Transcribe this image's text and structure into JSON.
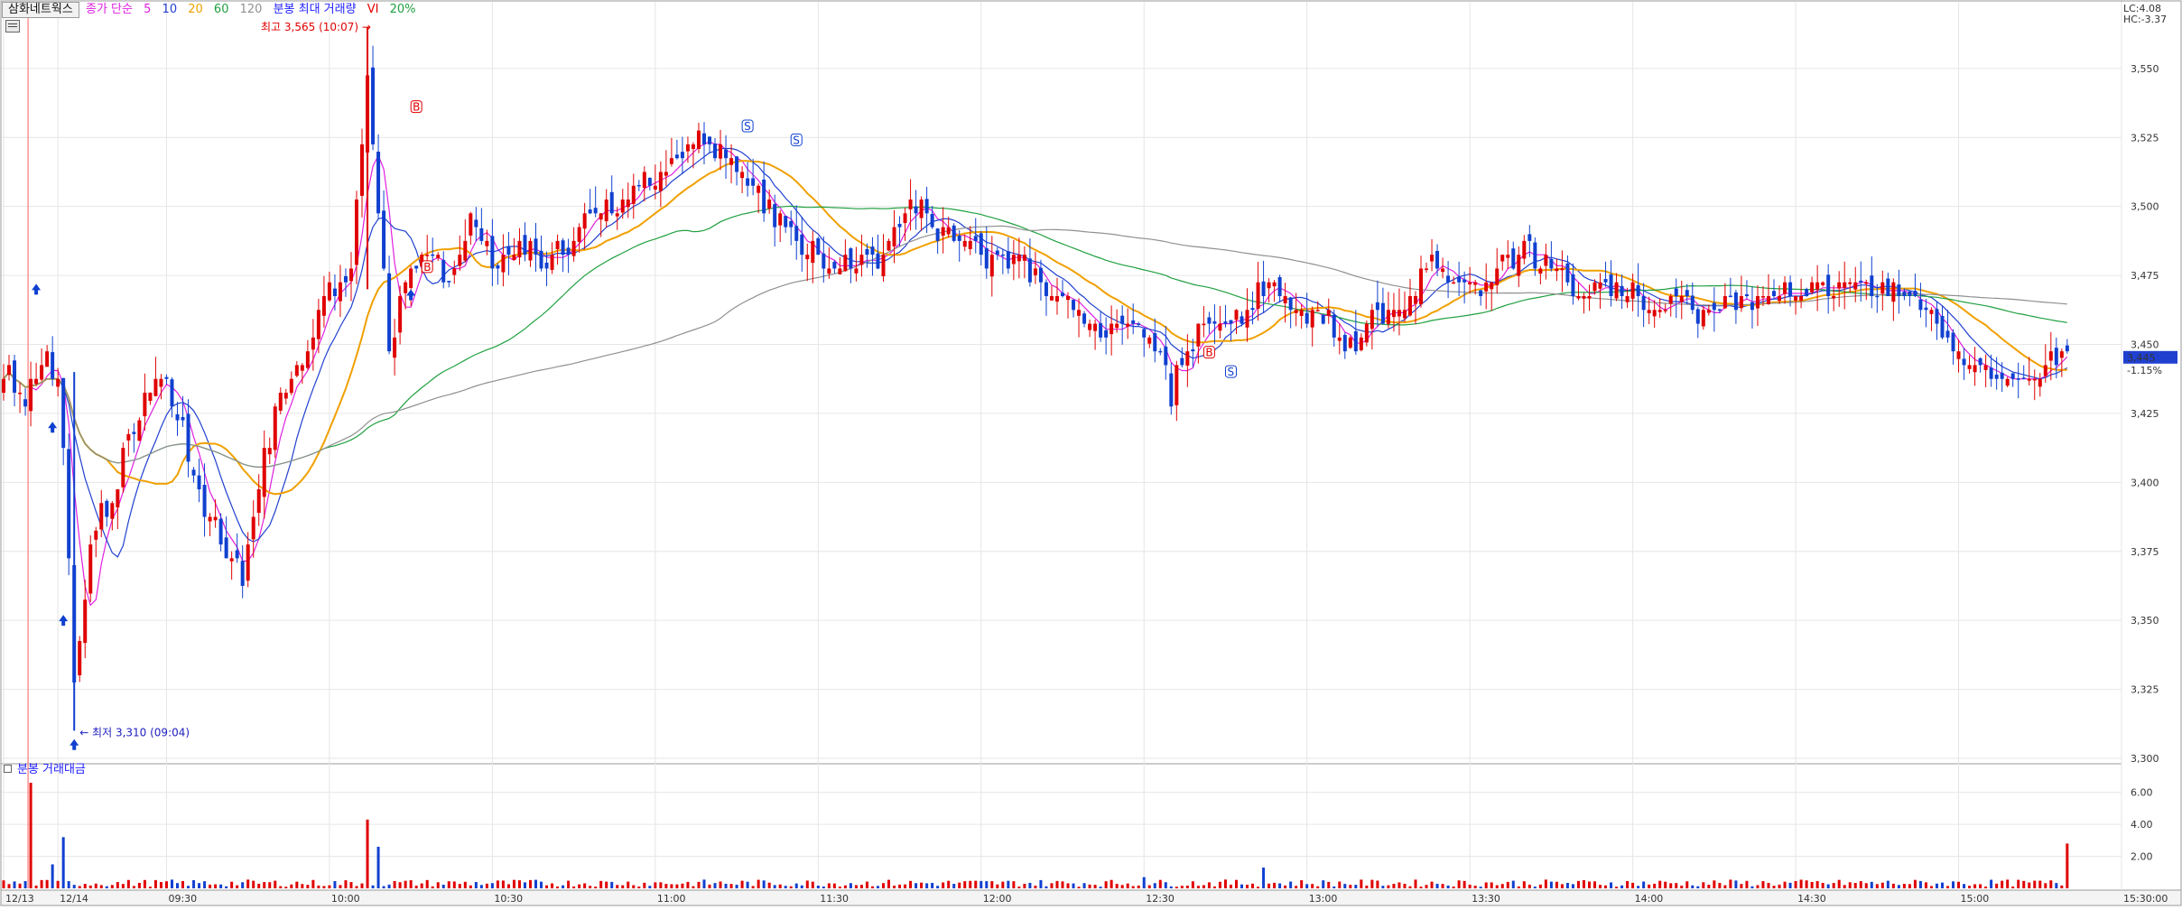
{
  "window": {
    "symbol": "삼화네트웍스",
    "legend": {
      "ma_label": "종가 단순",
      "ma_periods": [
        "5",
        "10",
        "20",
        "60",
        "120"
      ],
      "ma_colors": [
        "#e020e0",
        "#2040d0",
        "#f0a000",
        "#20a040",
        "#909090"
      ],
      "extra": [
        {
          "text": "분봉 최대 거래량",
          "color": "#2020ff"
        },
        {
          "text": "VI",
          "color": "#e00000"
        },
        {
          "text": "20%",
          "color": "#20a040"
        }
      ]
    },
    "top_right": {
      "lc": "LC:4.08",
      "hc": "HC:-3.37"
    },
    "last_price": {
      "value": "3,445",
      "change": "-1.15%"
    },
    "volume_panel_title": "분봉 거래대금"
  },
  "chart_data": {
    "type": "candlestick",
    "price_axis": {
      "min": 3300,
      "max": 3565,
      "ticks": [
        "3,300",
        "3,325",
        "3,350",
        "3,375",
        "3,400",
        "3,425",
        "3,450",
        "3,475",
        "3,500",
        "3,525",
        "3,550"
      ]
    },
    "volume_axis": {
      "min": 0,
      "max": 7,
      "ticks": [
        "2.00",
        "4.00",
        "6.00"
      ]
    },
    "time_labels": [
      {
        "t": 0,
        "label": "12/13"
      },
      {
        "t": 10,
        "label": "12/14"
      },
      {
        "t": 30,
        "label": "09:30"
      },
      {
        "t": 60,
        "label": "10:00"
      },
      {
        "t": 90,
        "label": "10:30"
      },
      {
        "t": 120,
        "label": "11:00"
      },
      {
        "t": 150,
        "label": "11:30"
      },
      {
        "t": 180,
        "label": "12:00"
      },
      {
        "t": 210,
        "label": "12:30"
      },
      {
        "t": 240,
        "label": "13:00"
      },
      {
        "t": 270,
        "label": "13:30"
      },
      {
        "t": 300,
        "label": "14:00"
      },
      {
        "t": 330,
        "label": "14:30"
      },
      {
        "t": 360,
        "label": "15:00"
      },
      {
        "t": 390,
        "label": "15:30:00"
      }
    ],
    "annotations": {
      "high": {
        "text": "최고 3,565 (10:07)",
        "t": 67,
        "price": 3565
      },
      "low": {
        "text": "최저 3,310 (09:04)",
        "t": 13,
        "price": 3310
      }
    },
    "anchors": [
      [
        0,
        3440
      ],
      [
        4,
        3430
      ],
      [
        8,
        3445
      ],
      [
        10,
        3438
      ],
      [
        11,
        3410
      ],
      [
        13,
        3330
      ],
      [
        15,
        3360
      ],
      [
        17,
        3385
      ],
      [
        20,
        3395
      ],
      [
        24,
        3420
      ],
      [
        28,
        3440
      ],
      [
        32,
        3425
      ],
      [
        36,
        3395
      ],
      [
        40,
        3380
      ],
      [
        44,
        3365
      ],
      [
        48,
        3410
      ],
      [
        52,
        3435
      ],
      [
        56,
        3450
      ],
      [
        60,
        3470
      ],
      [
        64,
        3478
      ],
      [
        67,
        3550
      ],
      [
        69,
        3500
      ],
      [
        71,
        3450
      ],
      [
        74,
        3470
      ],
      [
        78,
        3480
      ],
      [
        82,
        3475
      ],
      [
        86,
        3495
      ],
      [
        90,
        3480
      ],
      [
        95,
        3485
      ],
      [
        100,
        3480
      ],
      [
        104,
        3485
      ],
      [
        108,
        3495
      ],
      [
        112,
        3500
      ],
      [
        116,
        3505
      ],
      [
        120,
        3510
      ],
      [
        124,
        3520
      ],
      [
        128,
        3525
      ],
      [
        132,
        3520
      ],
      [
        136,
        3515
      ],
      [
        140,
        3500
      ],
      [
        144,
        3490
      ],
      [
        148,
        3485
      ],
      [
        152,
        3480
      ],
      [
        156,
        3482
      ],
      [
        160,
        3478
      ],
      [
        164,
        3490
      ],
      [
        168,
        3500
      ],
      [
        172,
        3490
      ],
      [
        176,
        3485
      ],
      [
        180,
        3483
      ],
      [
        184,
        3480
      ],
      [
        188,
        3478
      ],
      [
        192,
        3470
      ],
      [
        196,
        3465
      ],
      [
        200,
        3458
      ],
      [
        204,
        3455
      ],
      [
        208,
        3460
      ],
      [
        211,
        3450
      ],
      [
        213,
        3445
      ],
      [
        215,
        3430
      ],
      [
        217,
        3445
      ],
      [
        220,
        3455
      ],
      [
        224,
        3460
      ],
      [
        228,
        3462
      ],
      [
        232,
        3470
      ],
      [
        236,
        3468
      ],
      [
        240,
        3462
      ],
      [
        244,
        3460
      ],
      [
        248,
        3448
      ],
      [
        252,
        3458
      ],
      [
        256,
        3460
      ],
      [
        260,
        3472
      ],
      [
        264,
        3480
      ],
      [
        268,
        3472
      ],
      [
        272,
        3468
      ],
      [
        276,
        3478
      ],
      [
        280,
        3485
      ],
      [
        284,
        3478
      ],
      [
        288,
        3472
      ],
      [
        292,
        3468
      ],
      [
        296,
        3470
      ],
      [
        300,
        3468
      ],
      [
        304,
        3466
      ],
      [
        308,
        3464
      ],
      [
        312,
        3462
      ],
      [
        316,
        3465
      ],
      [
        320,
        3466
      ],
      [
        324,
        3468
      ],
      [
        328,
        3470
      ],
      [
        332,
        3468
      ],
      [
        336,
        3470
      ],
      [
        340,
        3468
      ],
      [
        344,
        3472
      ],
      [
        348,
        3470
      ],
      [
        352,
        3465
      ],
      [
        356,
        3458
      ],
      [
        360,
        3448
      ],
      [
        364,
        3440
      ],
      [
        368,
        3440
      ],
      [
        372,
        3440
      ],
      [
        376,
        3443
      ],
      [
        380,
        3445
      ]
    ],
    "volume_spikes": [
      [
        5,
        6.6
      ],
      [
        9,
        1.5
      ],
      [
        11,
        3.2
      ],
      [
        67,
        4.3
      ],
      [
        69,
        2.6
      ],
      [
        210,
        0.7
      ],
      [
        232,
        1.3
      ],
      [
        380,
        2.8
      ]
    ],
    "markers": {
      "buy_arrows": [
        {
          "t": 6,
          "price": 3470
        },
        {
          "t": 9,
          "price": 3420
        },
        {
          "t": 11,
          "price": 3350
        },
        {
          "t": 13,
          "price": 3305
        },
        {
          "t": 75,
          "price": 3468
        }
      ],
      "sell_marks": [
        {
          "t": 137,
          "label": "S",
          "price": 3529
        },
        {
          "t": 146,
          "label": "S",
          "price": 3524
        },
        {
          "t": 226,
          "label": "S",
          "price": 3440
        }
      ],
      "buy_marks": [
        {
          "t": 76,
          "label": "B",
          "price": 3536
        },
        {
          "t": 78,
          "label": "B",
          "price": 3478
        },
        {
          "t": 222,
          "label": "B",
          "price": 3447
        }
      ]
    }
  }
}
